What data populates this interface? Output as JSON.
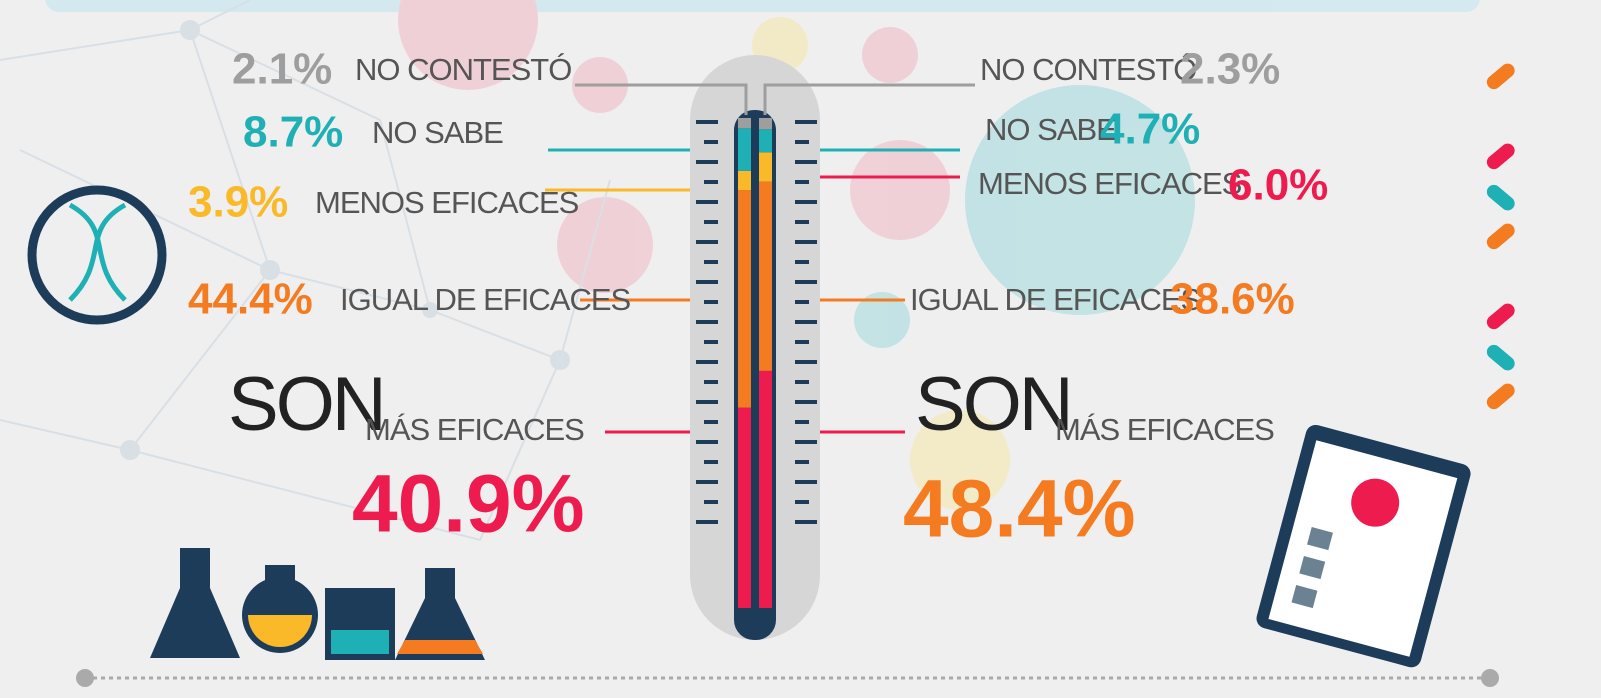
{
  "chart_data": {
    "type": "bar",
    "stacked": true,
    "categories": [
      null,
      null
    ],
    "prefix": "SON",
    "series": [
      {
        "name": "NO CONTESTÓ",
        "color": "#9e9e9e",
        "values": [
          2.1,
          2.3
        ],
        "value_labels": [
          "2.1%",
          "2.3%"
        ]
      },
      {
        "name": "NO SABE",
        "color": "#1fb0b5",
        "values": [
          8.7,
          4.7
        ],
        "value_labels": [
          "8.7%",
          "4.7%"
        ]
      },
      {
        "name": "MENOS EFICACES",
        "color": "#f9b928",
        "values": [
          3.9,
          6.0
        ],
        "value_labels": [
          "3.9%",
          "6.0%"
        ]
      },
      {
        "name": "IGUAL DE EFICACES",
        "color": "#f47b20",
        "values": [
          44.4,
          38.6
        ],
        "value_labels": [
          "44.4%",
          "38.6%"
        ]
      },
      {
        "name": "MÁS EFICACES",
        "color": "#ee1c4e",
        "values": [
          40.9,
          48.4
        ],
        "value_labels": [
          "40.9%",
          "48.4%"
        ]
      }
    ]
  }
}
